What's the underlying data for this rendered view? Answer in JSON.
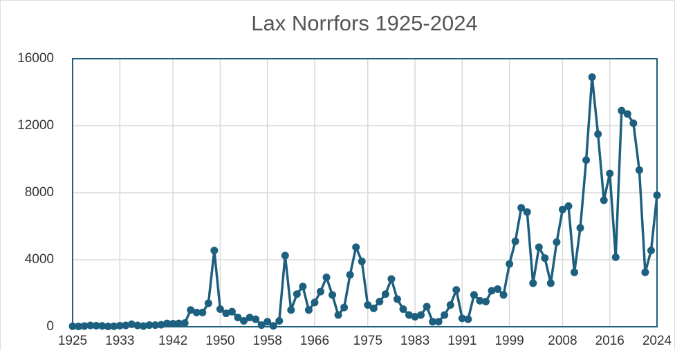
{
  "chart_data": {
    "type": "line",
    "title": "Lax Norrfors 1925-2024",
    "x": [
      1925,
      1926,
      1927,
      1928,
      1929,
      1930,
      1931,
      1932,
      1933,
      1934,
      1935,
      1936,
      1937,
      1938,
      1939,
      1940,
      1941,
      1942,
      1943,
      1944,
      1945,
      1946,
      1947,
      1948,
      1949,
      1950,
      1951,
      1952,
      1953,
      1954,
      1955,
      1956,
      1957,
      1958,
      1959,
      1960,
      1961,
      1962,
      1963,
      1964,
      1965,
      1966,
      1967,
      1968,
      1969,
      1970,
      1971,
      1972,
      1973,
      1974,
      1975,
      1976,
      1977,
      1978,
      1979,
      1980,
      1981,
      1982,
      1983,
      1984,
      1985,
      1986,
      1987,
      1988,
      1989,
      1990,
      1991,
      1992,
      1993,
      1994,
      1995,
      1996,
      1997,
      1998,
      1999,
      2000,
      2001,
      2002,
      2003,
      2004,
      2005,
      2006,
      2007,
      2008,
      2009,
      2010,
      2011,
      2012,
      2013,
      2014,
      2015,
      2016,
      2017,
      2018,
      2019,
      2020,
      2021,
      2022,
      2023,
      2024
    ],
    "series": [
      {
        "name": "Lax Norrfors",
        "color": "#1d5f7e",
        "values": [
          30,
          20,
          40,
          80,
          60,
          50,
          20,
          30,
          60,
          80,
          150,
          80,
          40,
          100,
          100,
          120,
          200,
          180,
          200,
          220,
          1000,
          850,
          850,
          1400,
          4550,
          1050,
          800,
          900,
          550,
          350,
          550,
          450,
          100,
          300,
          50,
          350,
          4250,
          1000,
          1950,
          2400,
          1000,
          1450,
          2100,
          2950,
          1900,
          700,
          1150,
          3100,
          4750,
          3900,
          1300,
          1100,
          1500,
          1950,
          2850,
          1650,
          1050,
          700,
          600,
          700,
          1200,
          300,
          300,
          700,
          1300,
          2200,
          500,
          450,
          1900,
          1550,
          1500,
          2150,
          2250,
          1900,
          3750,
          5100,
          7100,
          6850,
          2600,
          4750,
          4100,
          2600,
          5050,
          7000,
          7200,
          3250,
          5900,
          9950,
          14900,
          11500,
          7550,
          9150,
          4150,
          12900,
          12700,
          12150,
          9350,
          3250,
          4550,
          7850
        ]
      }
    ],
    "xlim": [
      1925,
      2024
    ],
    "xticks": [
      1925,
      1933,
      1942,
      1950,
      1958,
      1966,
      1975,
      1983,
      1991,
      1999,
      2008,
      2016,
      2024
    ],
    "ylim": [
      0,
      16000
    ],
    "yticks": [
      0,
      4000,
      8000,
      12000,
      16000
    ],
    "grid": true
  }
}
